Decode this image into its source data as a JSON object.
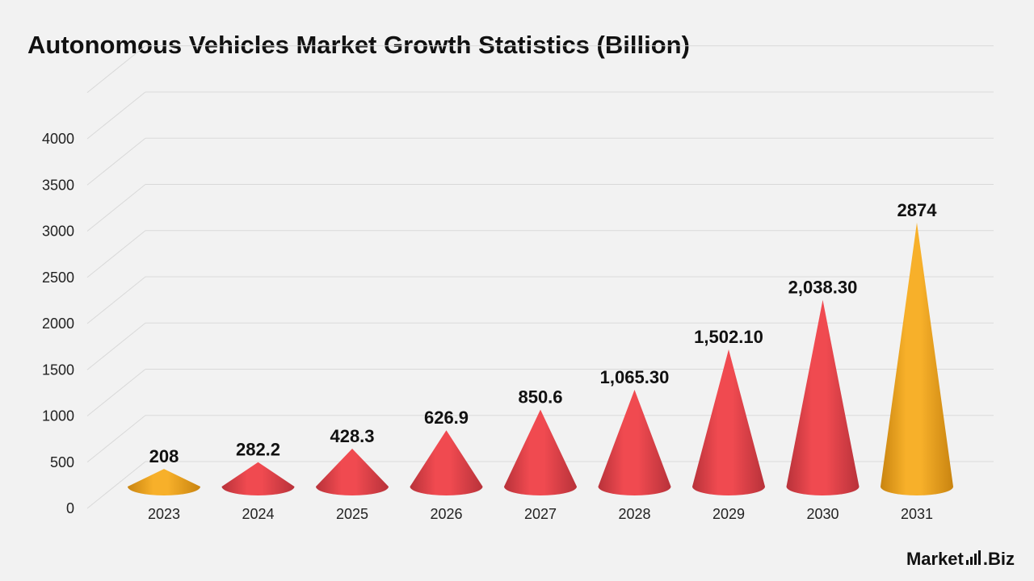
{
  "title": "Autonomous Vehicles Market Growth Statistics (Billion)",
  "brand": {
    "part1": "Market",
    "part2": ".Biz"
  },
  "colors": {
    "background": "#f2f2f2",
    "red": "#f04a50",
    "red_dark": "#b8323a",
    "gold": "#f7b02a",
    "gold_dark": "#c98410",
    "grid": "#d9d9d9"
  },
  "chart_data": {
    "type": "bar",
    "style": "3d-cone",
    "title": "Autonomous Vehicles Market Growth Statistics (Billion)",
    "categories": [
      "2023",
      "2024",
      "2025",
      "2026",
      "2027",
      "2028",
      "2029",
      "2030",
      "2031"
    ],
    "values": [
      208,
      282.2,
      428.3,
      626.9,
      850.6,
      1065.3,
      1502.1,
      2038.3,
      2874
    ],
    "data_labels": [
      "208",
      "282.2",
      "428.3",
      "626.9",
      "850.6",
      "1,065.30",
      "1,502.10",
      "2,038.30",
      "2874"
    ],
    "highlight": [
      true,
      false,
      false,
      false,
      false,
      false,
      false,
      false,
      true
    ],
    "yticks": [
      "0",
      "500",
      "1000",
      "1500",
      "2000",
      "2500",
      "3000",
      "3500",
      "4000"
    ],
    "ylim": [
      0,
      4000
    ],
    "grid": true,
    "legend": "none"
  }
}
